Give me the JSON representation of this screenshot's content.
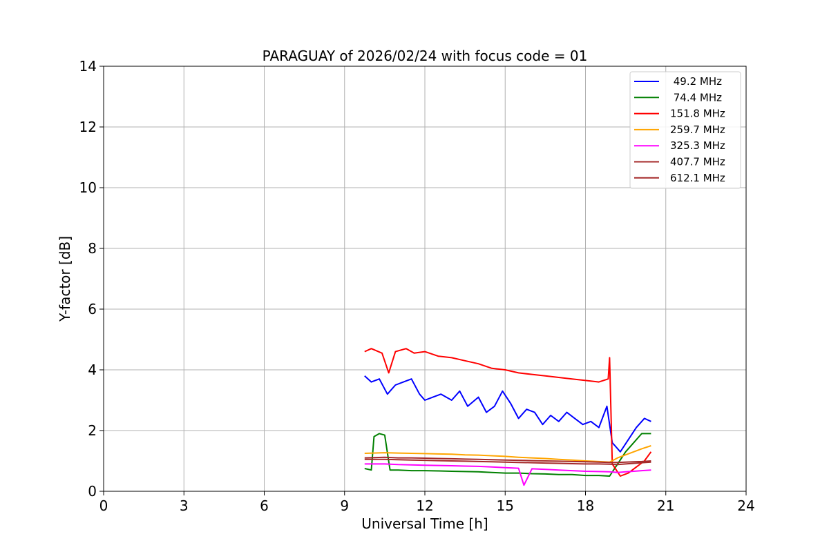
{
  "chart_data": {
    "type": "line",
    "title": "PARAGUAY of 2026/02/24 with focus code = 01",
    "xlabel": "Universal Time [h]",
    "ylabel": "Y-factor [dB]",
    "xlim": [
      0,
      24
    ],
    "ylim": [
      0,
      14
    ],
    "xticks": [
      0,
      3,
      6,
      9,
      12,
      15,
      18,
      21,
      24
    ],
    "yticks": [
      0,
      2,
      4,
      6,
      8,
      10,
      12,
      14
    ],
    "grid": true,
    "legend_position": "top-right",
    "series": [
      {
        "name": " 49.2 MHz",
        "color": "#0000ff",
        "x": [
          9.75,
          10.0,
          10.3,
          10.6,
          10.9,
          11.2,
          11.5,
          11.8,
          12.0,
          12.3,
          12.6,
          13.0,
          13.3,
          13.6,
          14.0,
          14.3,
          14.6,
          14.9,
          15.2,
          15.5,
          15.8,
          16.1,
          16.4,
          16.7,
          17.0,
          17.3,
          17.6,
          17.9,
          18.2,
          18.5,
          18.8,
          19.0,
          19.3,
          19.6,
          19.9,
          20.2,
          20.45
        ],
        "y": [
          3.8,
          3.6,
          3.7,
          3.2,
          3.5,
          3.6,
          3.7,
          3.2,
          3.0,
          3.1,
          3.2,
          3.0,
          3.3,
          2.8,
          3.1,
          2.6,
          2.8,
          3.3,
          2.9,
          2.4,
          2.7,
          2.6,
          2.2,
          2.5,
          2.3,
          2.6,
          2.4,
          2.2,
          2.3,
          2.1,
          2.8,
          1.6,
          1.3,
          1.7,
          2.1,
          2.4,
          2.3
        ]
      },
      {
        "name": " 74.4 MHz",
        "color": "#008000",
        "x": [
          9.75,
          10.0,
          10.1,
          10.3,
          10.5,
          10.7,
          11.0,
          11.5,
          12.0,
          12.5,
          13.0,
          13.5,
          14.0,
          14.5,
          15.0,
          15.5,
          16.0,
          16.5,
          17.0,
          17.5,
          18.0,
          18.5,
          18.9,
          19.2,
          19.5,
          19.8,
          20.1,
          20.45
        ],
        "y": [
          0.75,
          0.7,
          1.8,
          1.9,
          1.85,
          0.7,
          0.7,
          0.68,
          0.68,
          0.67,
          0.66,
          0.65,
          0.64,
          0.62,
          0.6,
          0.6,
          0.58,
          0.57,
          0.55,
          0.55,
          0.52,
          0.52,
          0.5,
          0.9,
          1.3,
          1.6,
          1.9,
          1.9
        ]
      },
      {
        "name": "151.8 MHz",
        "color": "#ff0000",
        "x": [
          9.75,
          10.0,
          10.4,
          10.65,
          10.9,
          11.3,
          11.6,
          12.0,
          12.5,
          13.0,
          13.5,
          14.0,
          14.5,
          15.0,
          15.5,
          16.0,
          16.5,
          17.0,
          17.5,
          18.0,
          18.5,
          18.85,
          18.9,
          19.0,
          19.3,
          19.6,
          19.9,
          20.2,
          20.45
        ],
        "y": [
          4.6,
          4.7,
          4.55,
          3.9,
          4.6,
          4.7,
          4.55,
          4.6,
          4.45,
          4.4,
          4.3,
          4.2,
          4.05,
          4.0,
          3.9,
          3.85,
          3.8,
          3.75,
          3.7,
          3.65,
          3.6,
          3.7,
          4.4,
          0.9,
          0.5,
          0.6,
          0.8,
          1.0,
          1.3
        ]
      },
      {
        "name": "259.7 MHz",
        "color": "#ffa500",
        "x": [
          9.75,
          10.5,
          11.0,
          11.5,
          12.0,
          12.5,
          13.0,
          13.5,
          14.0,
          14.5,
          15.0,
          15.5,
          16.0,
          16.5,
          17.0,
          17.5,
          18.0,
          18.5,
          18.9,
          19.2,
          19.5,
          19.8,
          20.1,
          20.45
        ],
        "y": [
          1.25,
          1.27,
          1.26,
          1.25,
          1.24,
          1.23,
          1.22,
          1.2,
          1.19,
          1.17,
          1.15,
          1.12,
          1.1,
          1.08,
          1.05,
          1.03,
          1.0,
          0.98,
          0.96,
          1.1,
          1.2,
          1.3,
          1.4,
          1.5
        ]
      },
      {
        "name": "325.3 MHz",
        "color": "#ff00ff",
        "x": [
          9.75,
          10.5,
          11.0,
          11.5,
          12.0,
          12.5,
          13.0,
          13.5,
          14.0,
          14.5,
          15.0,
          15.5,
          15.7,
          16.0,
          16.5,
          17.0,
          17.5,
          18.0,
          18.5,
          18.9,
          19.2,
          19.5,
          19.8,
          20.1,
          20.45
        ],
        "y": [
          0.9,
          0.9,
          0.88,
          0.87,
          0.86,
          0.85,
          0.84,
          0.83,
          0.82,
          0.8,
          0.78,
          0.76,
          0.2,
          0.74,
          0.72,
          0.7,
          0.68,
          0.66,
          0.65,
          0.64,
          0.62,
          0.64,
          0.66,
          0.68,
          0.7
        ]
      },
      {
        "name": "407.7 MHz",
        "color": "#a52a2a",
        "x": [
          9.75,
          10.5,
          11.0,
          11.5,
          12.0,
          12.5,
          13.0,
          13.5,
          14.0,
          14.5,
          15.0,
          15.5,
          16.0,
          16.5,
          17.0,
          17.5,
          18.0,
          18.5,
          18.9,
          19.2,
          19.5,
          19.8,
          20.1,
          20.45
        ],
        "y": [
          1.1,
          1.12,
          1.1,
          1.1,
          1.09,
          1.08,
          1.07,
          1.06,
          1.05,
          1.04,
          1.03,
          1.02,
          1.01,
          1.0,
          0.99,
          0.98,
          0.97,
          0.96,
          0.95,
          0.95,
          0.96,
          0.97,
          0.98,
          1.0
        ]
      },
      {
        "name": "612.1 MHz",
        "color": "#a52a2a",
        "x": [
          9.75,
          10.5,
          11.0,
          11.5,
          12.0,
          12.5,
          13.0,
          13.5,
          14.0,
          14.5,
          15.0,
          15.5,
          16.0,
          16.5,
          17.0,
          17.5,
          18.0,
          18.5,
          18.9,
          19.2,
          19.5,
          19.8,
          20.1,
          20.45
        ],
        "y": [
          1.05,
          1.05,
          1.04,
          1.03,
          1.02,
          1.01,
          1.0,
          0.99,
          0.98,
          0.97,
          0.96,
          0.95,
          0.94,
          0.93,
          0.92,
          0.91,
          0.9,
          0.9,
          0.89,
          0.88,
          0.9,
          0.92,
          0.94,
          0.96
        ]
      }
    ]
  }
}
